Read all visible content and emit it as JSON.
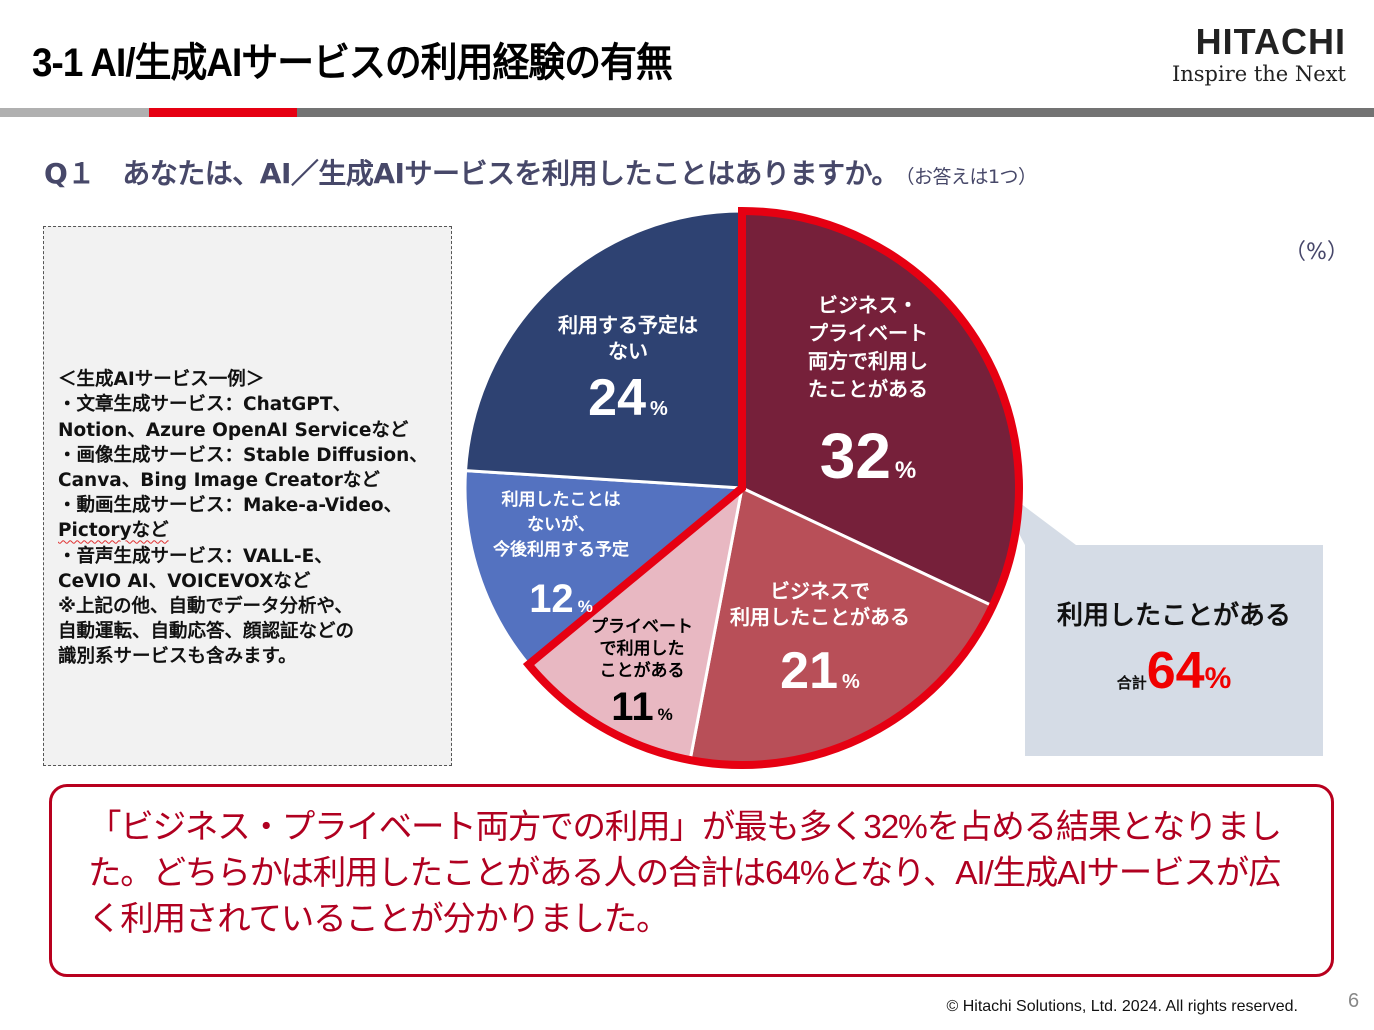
{
  "header": {
    "title": "3-1  AI/生成AIサービスの利用経験の有無",
    "logo_main": "HITACHI",
    "logo_sub": "Inspire the Next"
  },
  "question": {
    "text": "Q１　あなたは、AI／生成AIサービスを利用したことはありますか。",
    "note": "（お答えは1つ）"
  },
  "examples": {
    "lines": [
      "＜生成AIサービス一例＞",
      "・文章生成サービス：ChatGPT、",
      "Notion、Azure OpenAI Serviceなど",
      "・画像生成サービス：Stable Diffusion、",
      "Canva、Bing Image Creatorなど",
      "・動画生成サービス：Make-a-Video、",
      "Pictoryなど",
      "・音声生成サービス：VALL-E、",
      "CeVIO AI、VOICEVOXなど",
      "※上記の他、自動でデータ分析や、",
      "自動運転、自動応答、顔認証などの",
      "識別系サービスも含みます。"
    ]
  },
  "chart_data": {
    "type": "pie",
    "title": "Q１　あなたは、AI／生成AIサービスを利用したことはありますか。",
    "unit_label": "（%）",
    "start": "top",
    "direction": "clockwise",
    "slices": [
      {
        "label": "ビジネス・プライベート両方で利用したことがある",
        "label_lines": [
          "ビジネス・",
          "プライベート",
          "両方で利用し",
          "たことがある"
        ],
        "value": 32,
        "color": "#76203a",
        "text_color": "#ffffff",
        "highlighted": true
      },
      {
        "label": "ビジネスで利用したことがある",
        "label_lines": [
          "ビジネスで",
          "利用したことがある"
        ],
        "value": 21,
        "color": "#b84f58",
        "text_color": "#ffffff",
        "highlighted": true
      },
      {
        "label": "プライベートで利用したことがある",
        "label_lines": [
          "プライベート",
          "で利用した",
          "ことがある"
        ],
        "value": 11,
        "color": "#e8b8c2",
        "text_color": "#000000",
        "highlighted": true
      },
      {
        "label": "利用したことはないが、今後利用する予定",
        "label_lines": [
          "利用したことは",
          "ないが、",
          "今後利用する予定"
        ],
        "value": 12,
        "color": "#5472c0",
        "text_color": "#ffffff",
        "highlighted": false
      },
      {
        "label": "利用する予定はない",
        "label_lines": [
          "利用する予定は",
          "ない"
        ],
        "value": 24,
        "color": "#2e4272",
        "text_color": "#ffffff",
        "highlighted": false
      }
    ],
    "percent_sign": "%",
    "highlight_color": "#e60012",
    "callout": {
      "label": "利用したことがある",
      "total_label": "合計",
      "total_value": 64,
      "total_suffix": "%"
    }
  },
  "summary": {
    "text": "「ビジネス・プライベート両方での利用」が最も多く32%を占める結果となりました。どちらかは利用したことがある人の合計は64%となり、AI/生成AIサービスが広く利用されていることが分かりました。"
  },
  "footer": {
    "copyright": "© Hitachi Solutions, Ltd. 2024. All rights reserved.",
    "page_number": "6"
  }
}
